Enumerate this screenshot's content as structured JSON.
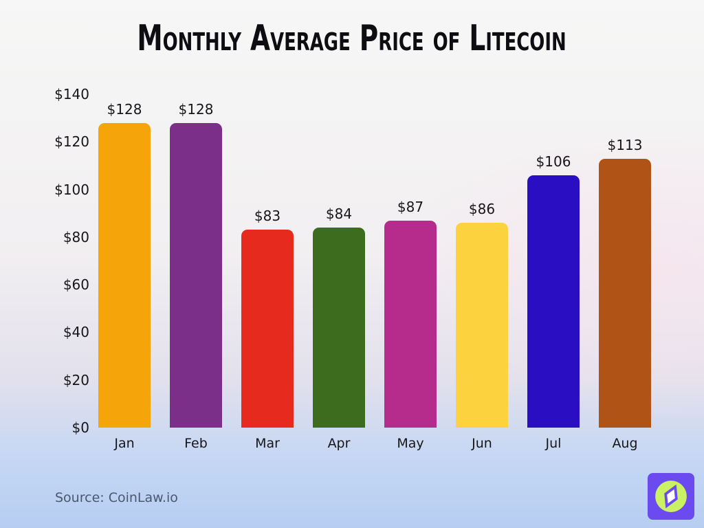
{
  "header": {
    "title": "Monthly Average Price of Litecoin"
  },
  "footer": {
    "source": "Source: CoinLaw.io",
    "logo": "coinlaw-compass-logo"
  },
  "colors": {
    "title": "#0d0d12",
    "axis_label": "#16161a",
    "source_text": "#4b576d",
    "background_top": "#f6f7f6",
    "background_bottom": "#b7cef2",
    "logo_bg": "#6b4af0",
    "logo_circle": "#c9f163",
    "logo_needle": "#6b4af0",
    "logo_needle_center": "#ffffff"
  },
  "chart_data": {
    "type": "bar",
    "title": "Monthly Average Price of Litecoin",
    "categories": [
      "Jan",
      "Feb",
      "Mar",
      "Apr",
      "May",
      "Jun",
      "Jul",
      "Aug"
    ],
    "values": [
      128,
      128,
      83,
      84,
      87,
      86,
      106,
      113
    ],
    "value_labels": [
      "$128",
      "$128",
      "$83",
      "$84",
      "$87",
      "$86",
      "$106",
      "$113"
    ],
    "bar_colors": [
      "#f5a40a",
      "#7c2f89",
      "#e62b1e",
      "#3d6c1f",
      "#b52c8c",
      "#fcd33f",
      "#2a0ec1",
      "#b05317"
    ],
    "xlabel": "",
    "ylabel": "",
    "ylim": [
      0,
      140
    ],
    "yticks": [
      {
        "value": 140,
        "label": "$140"
      },
      {
        "value": 120,
        "label": "$120"
      },
      {
        "value": 100,
        "label": "$100"
      },
      {
        "value": 80,
        "label": "$80"
      },
      {
        "value": 60,
        "label": "$60"
      },
      {
        "value": 40,
        "label": "$40"
      },
      {
        "value": 20,
        "label": "$20"
      },
      {
        "value": 0,
        "label": "$0"
      }
    ],
    "grid": false,
    "legend": false
  }
}
